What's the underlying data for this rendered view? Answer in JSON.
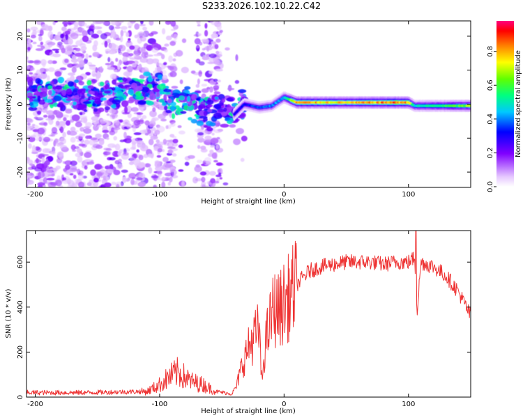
{
  "title": "S233.2026.102.10.22.C42",
  "chart_data": [
    {
      "type": "heatmap",
      "name": "spectrogram",
      "xlabel": "Height of straight line (km)",
      "ylabel": "Frequency (Hz)",
      "xlim": [
        -207,
        150
      ],
      "ylim": [
        -24.5,
        24.5
      ],
      "xticks": [
        -200,
        -100,
        0,
        100
      ],
      "yticks": [
        -20,
        -10,
        0,
        10,
        20
      ],
      "colorbar": {
        "label": "Normalized spectral amplitude",
        "range": [
          0,
          0.98
        ],
        "ticks": [
          0.0,
          0.2,
          0.4,
          0.6,
          0.8
        ]
      },
      "ridge": {
        "x": [
          -200,
          -190,
          -180,
          -160,
          -140,
          -120,
          -100,
          -90,
          -80,
          -70,
          -60,
          -50,
          -40,
          -32,
          -20,
          -10,
          0,
          10,
          50,
          100,
          105,
          150
        ],
        "y": [
          3,
          3,
          3,
          2,
          2,
          5,
          4,
          0,
          1,
          -1,
          -3,
          -2,
          -3,
          0,
          -1,
          -0.5,
          2,
          0.5,
          0.5,
          0.5,
          -0.5,
          -0.5
        ]
      },
      "band_amplitude": {
        "x": [
          -40,
          -20,
          0,
          10,
          50,
          90,
          100,
          105,
          130,
          150
        ],
        "value": [
          0.3,
          0.4,
          0.45,
          0.85,
          0.8,
          0.9,
          0.85,
          0.5,
          0.6,
          0.7
        ]
      }
    },
    {
      "type": "line",
      "name": "snr",
      "xlabel": "Height of straight line (km)",
      "ylabel": "SNR (10 * v/v)",
      "xlim": [
        -207,
        150
      ],
      "ylim": [
        0,
        740
      ],
      "xticks": [
        -200,
        -100,
        0,
        100
      ],
      "yticks": [
        0,
        200,
        400,
        600
      ],
      "color": "#ee3333",
      "x": [
        -207,
        -160,
        -110,
        -100,
        -92,
        -85,
        -75,
        -65,
        -55,
        -42,
        -38,
        -35,
        -30,
        -25,
        -20,
        -18,
        -15,
        -10,
        -8,
        -5,
        0,
        5,
        10,
        20,
        30,
        40,
        50,
        60,
        70,
        80,
        90,
        100,
        105,
        107,
        110,
        120,
        130,
        140,
        150
      ],
      "y": [
        20,
        20,
        25,
        55,
        90,
        110,
        70,
        55,
        25,
        15,
        50,
        120,
        200,
        260,
        300,
        60,
        240,
        360,
        400,
        380,
        420,
        450,
        500,
        560,
        580,
        590,
        600,
        600,
        600,
        590,
        600,
        600,
        620,
        380,
        600,
        580,
        540,
        470,
        360
      ]
    }
  ]
}
